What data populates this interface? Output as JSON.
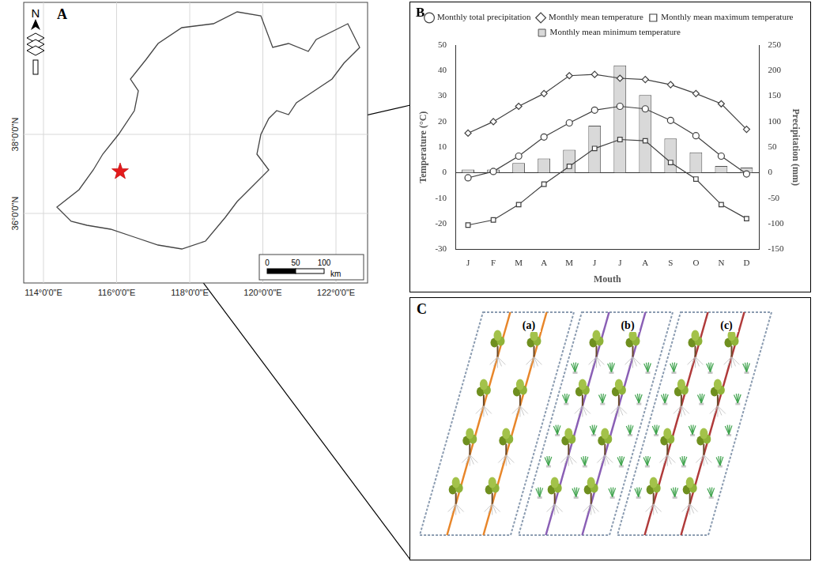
{
  "panel_labels": [
    "A",
    "B",
    "C"
  ],
  "map": {
    "xticks": [
      "114°0'0\"E",
      "116°0'0\"E",
      "118°0'0\"E",
      "120°0'0\"E",
      "122°0'0\"E"
    ],
    "yticks": [
      "36°0'0\"N",
      "38°0'0\"N"
    ],
    "north": "N",
    "scale_bar": {
      "ticks": [
        0,
        50,
        100
      ],
      "unit": "km"
    }
  },
  "chart_data": {
    "type": "bar",
    "xlabel": "Mouth",
    "ylabel": "Temperature (°C)",
    "y2label": "Precipitation (mm)",
    "categories": [
      "J",
      "F",
      "M",
      "A",
      "M",
      "J",
      "J",
      "A",
      "S",
      "O",
      "N",
      "D"
    ],
    "ylim": [
      -30,
      50
    ],
    "yticks": [
      -30,
      -20,
      -10,
      0,
      10,
      20,
      30,
      40,
      50
    ],
    "y2lim": [
      -150,
      250
    ],
    "y2ticks": [
      -150,
      -100,
      -50,
      0,
      50,
      100,
      150,
      200,
      250
    ],
    "grid": false,
    "legend": "top",
    "series": [
      {
        "name": "Monthly mean minimum temperature",
        "type": "bar",
        "axis": "y2",
        "color": "#d9d9d9",
        "values": [
          6,
          6,
          19,
          28,
          45,
          92,
          210,
          152,
          67,
          40,
          13,
          10
        ]
      },
      {
        "name": "Monthly total precipitation",
        "type": "line",
        "marker": "circle",
        "line_style": "solid",
        "color": "#404040",
        "values": [
          -2,
          0.5,
          6.5,
          14,
          19.5,
          24.5,
          26,
          25,
          20.5,
          14.5,
          6.5,
          -0.5
        ]
      },
      {
        "name": "Monthly mean temperature",
        "type": "line",
        "marker": "diamond",
        "line_style": "solid",
        "color": "#404040",
        "values": [
          15.5,
          20,
          26,
          31,
          38,
          38.5,
          37,
          36.5,
          34.5,
          31,
          27,
          17
        ]
      },
      {
        "name": "Monthly mean maximum temperature",
        "type": "line",
        "marker": "square",
        "line_style": "solid",
        "color": "#404040",
        "values": [
          -20.5,
          -18.5,
          -12.5,
          -4.5,
          2.5,
          9.5,
          13,
          12.5,
          4,
          -2.5,
          -12.5,
          -18
        ]
      }
    ]
  },
  "diagram": {
    "plots": [
      "(a)",
      "(b)",
      "(c)"
    ]
  }
}
